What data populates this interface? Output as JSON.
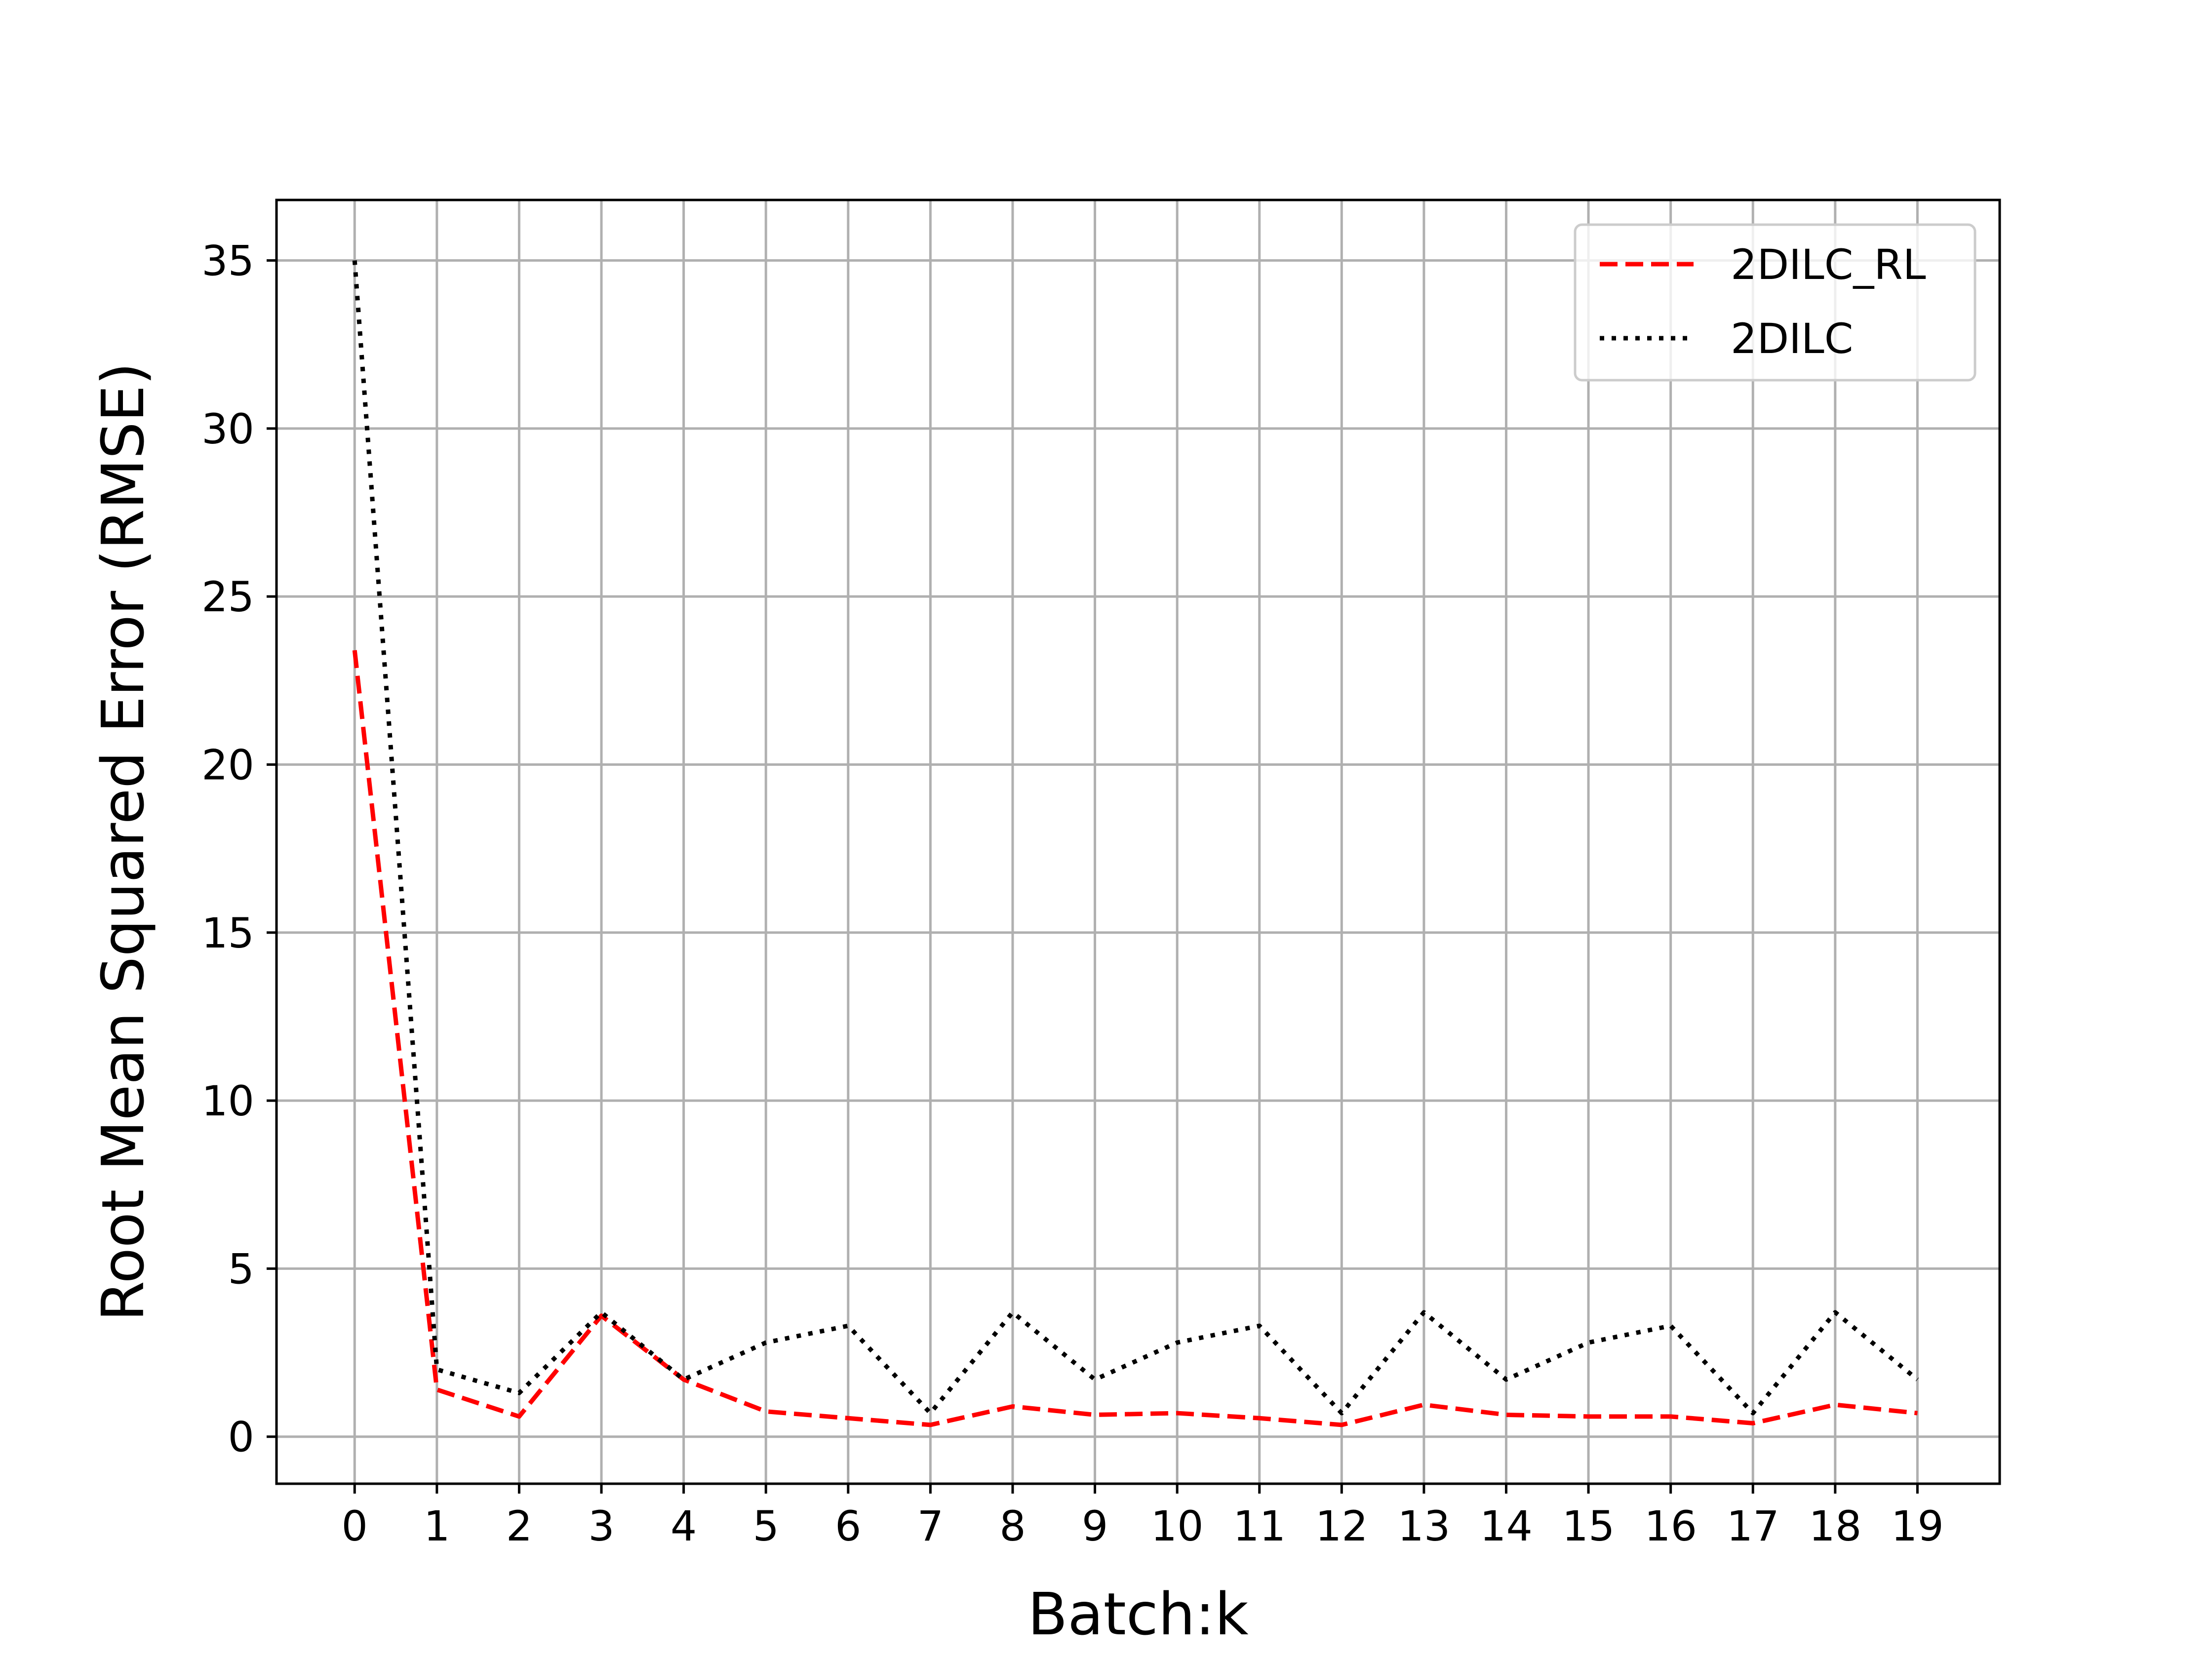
{
  "chart_data": {
    "type": "line",
    "title": "",
    "xlabel": "Batch:k",
    "ylabel": "Root Mean Squared Error (RMSE)",
    "x": [
      0,
      1,
      2,
      3,
      4,
      5,
      6,
      7,
      8,
      9,
      10,
      11,
      12,
      13,
      14,
      15,
      16,
      17,
      18,
      19
    ],
    "x_tick_labels": [
      "0",
      "1",
      "2",
      "3",
      "4",
      "5",
      "6",
      "7",
      "8",
      "9",
      "10",
      "11",
      "12",
      "13",
      "14",
      "15",
      "16",
      "17",
      "18",
      "19"
    ],
    "y_tick_values": [
      0,
      5,
      10,
      15,
      20,
      25,
      30,
      35
    ],
    "y_tick_labels": [
      "0",
      "5",
      "10",
      "15",
      "20",
      "25",
      "30",
      "35"
    ],
    "xlim": [
      -0.95,
      20.0
    ],
    "ylim": [
      -1.4,
      36.8
    ],
    "grid": true,
    "legend_position": "top-right",
    "series": [
      {
        "name": "2DILC_RL",
        "color": "#ff0000",
        "line_style": "dashed",
        "values": [
          23.4,
          1.4,
          0.6,
          3.6,
          1.7,
          0.75,
          0.55,
          0.35,
          0.9,
          0.65,
          0.7,
          0.55,
          0.35,
          0.95,
          0.65,
          0.6,
          0.6,
          0.4,
          0.95,
          0.7
        ]
      },
      {
        "name": "2DILC",
        "color": "#000000",
        "line_style": "dotted",
        "values": [
          35.0,
          2.0,
          1.3,
          3.7,
          1.7,
          2.8,
          3.3,
          0.7,
          3.7,
          1.7,
          2.8,
          3.3,
          0.7,
          3.7,
          1.7,
          2.8,
          3.3,
          0.7,
          3.7,
          1.7
        ]
      }
    ]
  }
}
